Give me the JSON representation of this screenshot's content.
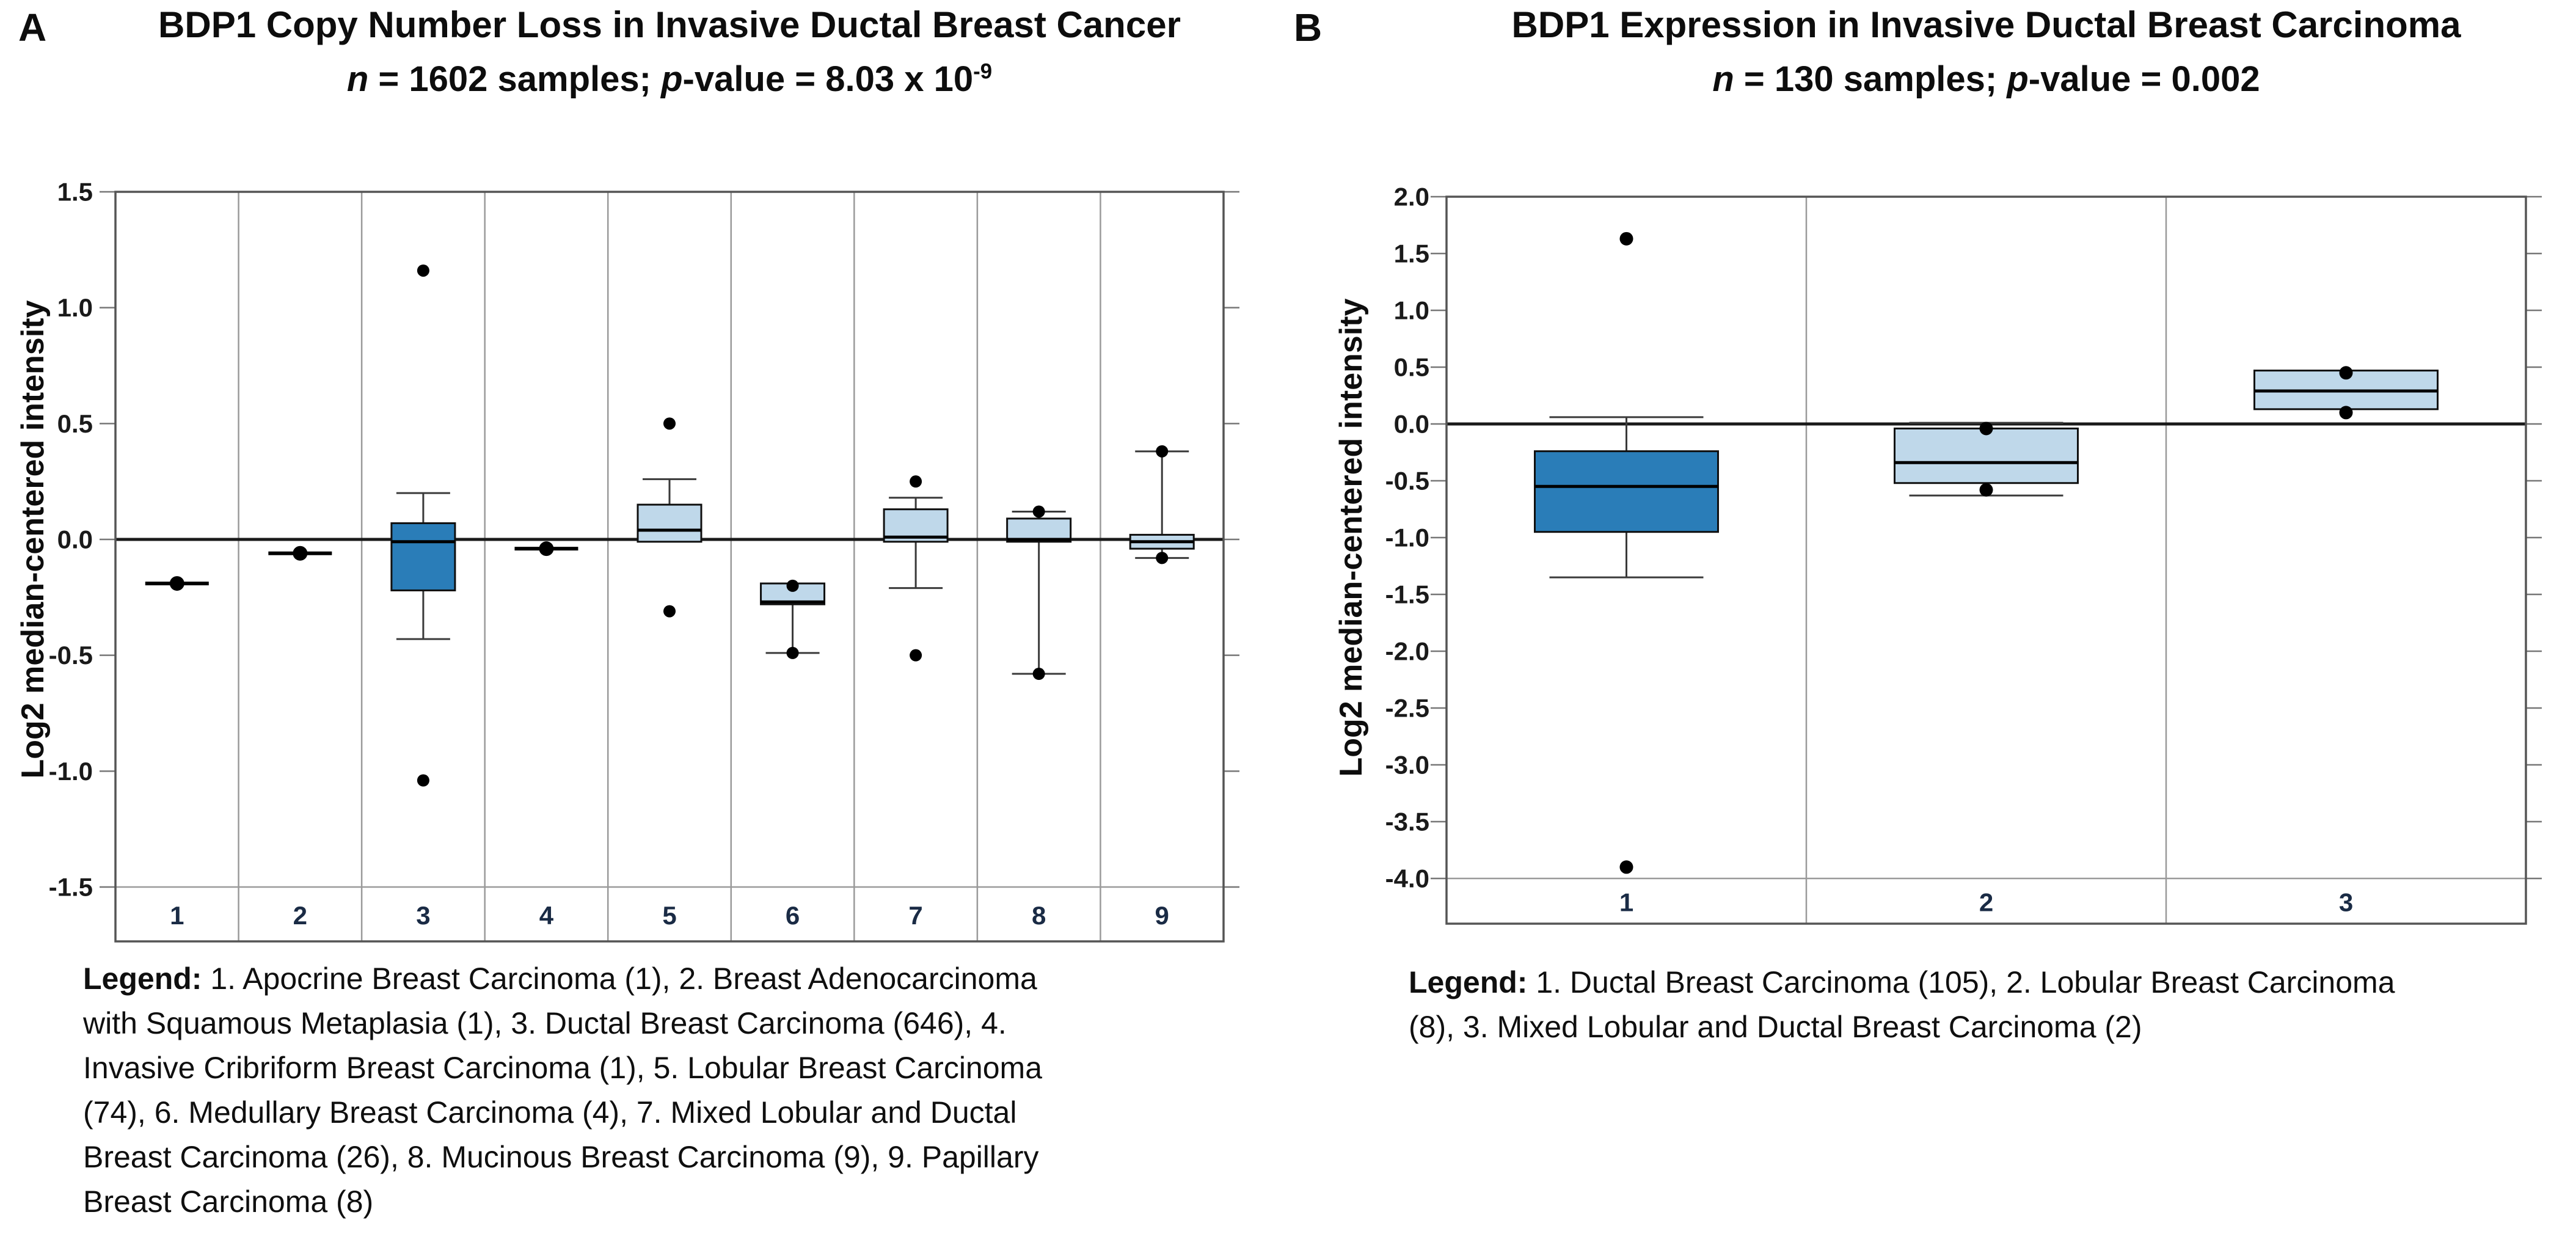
{
  "colors": {
    "dark_box": "#2a7db8",
    "light_box": "#bfd8ea",
    "box_stroke": "#101010",
    "median_line": "#000000",
    "whisker": "#3a3a3a",
    "grid_line": "#9a9a9a",
    "plot_border": "#555555",
    "tick_mark": "#777777",
    "zero_line": "#1a1a1a",
    "tick_label": "#1a1a1a",
    "category_label": "#1a2b45",
    "outlier_dot": "#000000"
  },
  "chart_data": [
    {
      "panel_label": "A",
      "type": "box",
      "title": "BDP1 Copy Number Loss in Invasive Ductal Breast Cancer",
      "subtitle_parts": [
        {
          "text": "n",
          "italic": true
        },
        {
          "text": " = 1602 samples; "
        },
        {
          "text": "p",
          "italic": true
        },
        {
          "text": "-value = 8.03 x 10"
        },
        {
          "text": "-9",
          "sup": true
        }
      ],
      "ylabel": "Log2 median-centered intensity",
      "ylim": [
        -1.5,
        1.5
      ],
      "ytick_labels": [
        "1.5",
        "1.0",
        "0.5",
        "0.0",
        "-0.5",
        "-1.0",
        "-1.5"
      ],
      "grid": "vertical-cells",
      "legend_position": "below",
      "categories": [
        "1",
        "2",
        "3",
        "4",
        "5",
        "6",
        "7",
        "8",
        "9"
      ],
      "groups": [
        {
          "label": "1",
          "type": "point",
          "value": -0.19
        },
        {
          "label": "2",
          "type": "point",
          "value": -0.06
        },
        {
          "label": "3",
          "type": "box",
          "fill": "dark",
          "q1": -0.22,
          "median": -0.01,
          "q3": 0.07,
          "whisker_low": -0.43,
          "whisker_high": 0.2,
          "outliers": [
            1.16,
            -1.04
          ]
        },
        {
          "label": "4",
          "type": "point",
          "value": -0.04
        },
        {
          "label": "5",
          "type": "box",
          "fill": "light",
          "q1": -0.01,
          "median": 0.04,
          "q3": 0.15,
          "whisker_low": null,
          "whisker_high": 0.26,
          "outliers": [
            0.5,
            -0.31
          ]
        },
        {
          "label": "6",
          "type": "box",
          "fill": "light",
          "q1": -0.28,
          "median": -0.27,
          "q3": -0.19,
          "whisker_low": -0.49,
          "whisker_high": null,
          "outliers": [
            -0.2,
            -0.49
          ]
        },
        {
          "label": "7",
          "type": "box",
          "fill": "light",
          "q1": -0.01,
          "median": 0.01,
          "q3": 0.13,
          "whisker_low": -0.21,
          "whisker_high": 0.18,
          "outliers": [
            0.25,
            -0.5
          ]
        },
        {
          "label": "8",
          "type": "box",
          "fill": "light",
          "q1": -0.01,
          "median": 0.0,
          "q3": 0.09,
          "whisker_low": -0.58,
          "whisker_high": 0.12,
          "outliers": [
            0.12,
            -0.58
          ]
        },
        {
          "label": "9",
          "type": "box",
          "fill": "light",
          "q1": -0.04,
          "median": -0.01,
          "q3": 0.02,
          "whisker_low": -0.08,
          "whisker_high": 0.38,
          "outliers": [
            0.38,
            -0.08
          ]
        }
      ],
      "legend": {
        "prefix": "Legend:",
        "lines": [
          "1. Apocrine Breast Carcinoma (1), 2. Breast Adenocarcinoma",
          "with Squamous Metaplasia (1), 3. Ductal Breast Carcinoma (646), 4.",
          "Invasive Cribriform Breast Carcinoma (1), 5. Lobular Breast Carcinoma",
          "(74), 6. Medullary Breast Carcinoma (4), 7. Mixed Lobular and Ductal",
          "Breast Carcinoma (26), 8. Mucinous Breast Carcinoma (9), 9. Papillary",
          "Breast Carcinoma (8)"
        ]
      }
    },
    {
      "panel_label": "B",
      "type": "box",
      "title": "BDP1 Expression in Invasive Ductal Breast Carcinoma",
      "subtitle_parts": [
        {
          "text": "n",
          "italic": true
        },
        {
          "text": " = 130 samples; "
        },
        {
          "text": "p",
          "italic": true
        },
        {
          "text": "-value = 0.002"
        }
      ],
      "ylabel": "Log2 median-centered intensity",
      "ylim": [
        -4.0,
        2.0
      ],
      "ytick_labels": [
        "2.0",
        "1.5",
        "1.0",
        "0.5",
        "0.0",
        "-0.5",
        "-1.0",
        "-1.5",
        "-2.0",
        "-2.5",
        "-3.0",
        "-3.5",
        "-4.0"
      ],
      "grid": "vertical-cells",
      "legend_position": "below",
      "categories": [
        "1",
        "2",
        "3"
      ],
      "groups": [
        {
          "label": "1",
          "type": "box",
          "fill": "dark",
          "q1": -0.95,
          "median": -0.55,
          "q3": -0.24,
          "whisker_low": -1.35,
          "whisker_high": 0.06,
          "outliers": [
            1.63,
            -3.9
          ]
        },
        {
          "label": "2",
          "type": "box",
          "fill": "light",
          "q1": -0.52,
          "median": -0.34,
          "q3": -0.04,
          "whisker_low": -0.63,
          "whisker_high": 0.01,
          "outliers": [
            -0.04,
            -0.58
          ]
        },
        {
          "label": "3",
          "type": "box",
          "fill": "light",
          "q1": 0.13,
          "median": 0.29,
          "q3": 0.47,
          "whisker_low": null,
          "whisker_high": null,
          "outliers": [
            0.45,
            0.1
          ]
        }
      ],
      "legend": {
        "prefix": "Legend:",
        "lines": [
          "1. Ductal Breast Carcinoma (105), 2. Lobular Breast Carcinoma",
          "(8), 3. Mixed Lobular and Ductal Breast Carcinoma (2)"
        ]
      }
    }
  ]
}
